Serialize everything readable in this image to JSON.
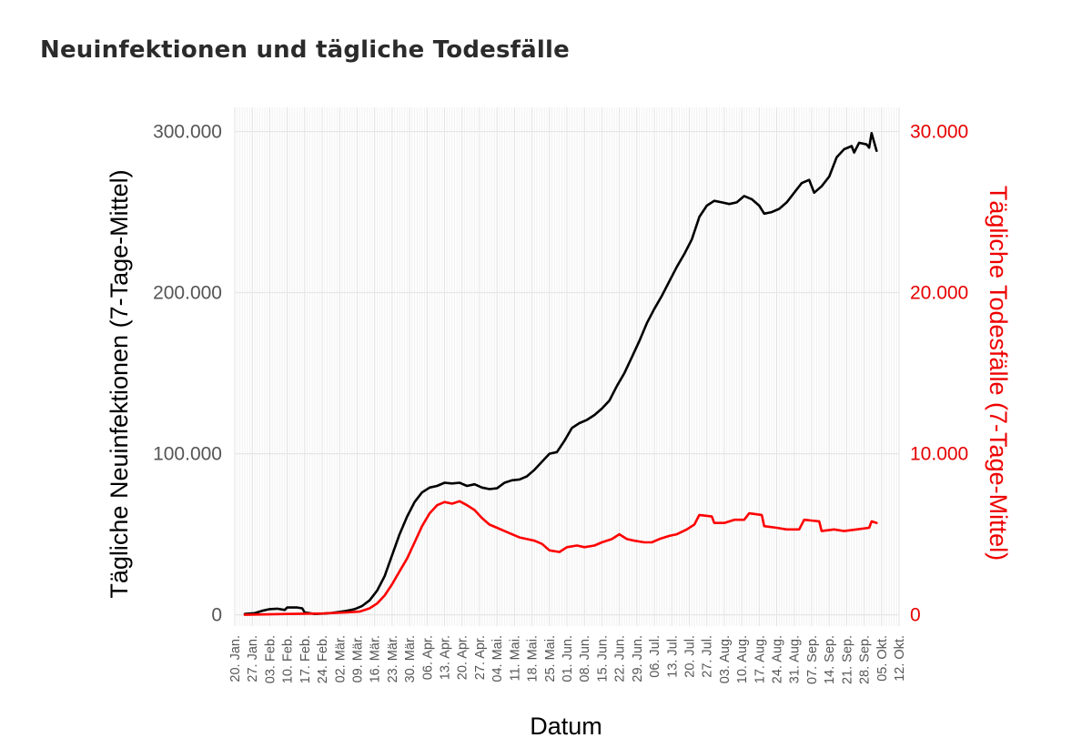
{
  "page_title": "Neuinfektionen und tägliche Todesfälle",
  "chart_data": {
    "type": "line",
    "xlabel": "Datum",
    "ylabel_left": "Tägliche Neuinfektionen (7-Tage-Mittel)",
    "ylabel_right": "Tägliche Todesfälle (7-Tage-Mittel)",
    "x_start": "2020-01-20",
    "x_end": "2020-10-12",
    "y_left_lim": [
      -7000,
      315000
    ],
    "y_right_lim": [
      -700,
      31500
    ],
    "left_ticks": [
      {
        "value": 0,
        "label": "0"
      },
      {
        "value": 100000,
        "label": "100.000"
      },
      {
        "value": 200000,
        "label": "200.000"
      },
      {
        "value": 300000,
        "label": "300.000"
      }
    ],
    "right_ticks": [
      {
        "value": 0,
        "label": "0"
      },
      {
        "value": 10000,
        "label": "10.000"
      },
      {
        "value": 20000,
        "label": "20.000"
      },
      {
        "value": 30000,
        "label": "30.000"
      }
    ],
    "x_ticks": [
      {
        "date": "2020-01-20",
        "label": "20. Jan."
      },
      {
        "date": "2020-01-27",
        "label": "27. Jan."
      },
      {
        "date": "2020-02-03",
        "label": "03. Feb."
      },
      {
        "date": "2020-02-10",
        "label": "10. Feb."
      },
      {
        "date": "2020-02-17",
        "label": "17. Feb."
      },
      {
        "date": "2020-02-24",
        "label": "24. Feb."
      },
      {
        "date": "2020-03-02",
        "label": "02. Mär."
      },
      {
        "date": "2020-03-09",
        "label": "09. Mär."
      },
      {
        "date": "2020-03-16",
        "label": "16. Mär."
      },
      {
        "date": "2020-03-23",
        "label": "23. Mär."
      },
      {
        "date": "2020-03-30",
        "label": "30. Mär."
      },
      {
        "date": "2020-04-06",
        "label": "06. Apr."
      },
      {
        "date": "2020-04-13",
        "label": "13. Apr."
      },
      {
        "date": "2020-04-20",
        "label": "20. Apr."
      },
      {
        "date": "2020-04-27",
        "label": "27. Apr."
      },
      {
        "date": "2020-05-04",
        "label": "04. Mai."
      },
      {
        "date": "2020-05-11",
        "label": "11. Mai."
      },
      {
        "date": "2020-05-18",
        "label": "18. Mai."
      },
      {
        "date": "2020-05-25",
        "label": "25. Mai."
      },
      {
        "date": "2020-06-01",
        "label": "01. Jun."
      },
      {
        "date": "2020-06-08",
        "label": "08. Jun."
      },
      {
        "date": "2020-06-15",
        "label": "15. Jun."
      },
      {
        "date": "2020-06-22",
        "label": "22. Jun."
      },
      {
        "date": "2020-06-29",
        "label": "29. Jun."
      },
      {
        "date": "2020-07-06",
        "label": "06. Jul."
      },
      {
        "date": "2020-07-13",
        "label": "13. Jul."
      },
      {
        "date": "2020-07-20",
        "label": "20. Jul."
      },
      {
        "date": "2020-07-27",
        "label": "27. Jul."
      },
      {
        "date": "2020-08-03",
        "label": "03. Aug."
      },
      {
        "date": "2020-08-10",
        "label": "10. Aug."
      },
      {
        "date": "2020-08-17",
        "label": "17. Aug."
      },
      {
        "date": "2020-08-24",
        "label": "24. Aug."
      },
      {
        "date": "2020-08-31",
        "label": "31. Aug."
      },
      {
        "date": "2020-09-07",
        "label": "07. Sep."
      },
      {
        "date": "2020-09-14",
        "label": "14. Sep."
      },
      {
        "date": "2020-09-21",
        "label": "21. Sep."
      },
      {
        "date": "2020-09-28",
        "label": "28. Sep."
      },
      {
        "date": "2020-10-05",
        "label": "05. Okt."
      },
      {
        "date": "2020-10-12",
        "label": "12. Okt."
      }
    ],
    "series": [
      {
        "name": "Tägliche Neuinfektionen (7-Tage-Mittel)",
        "axis": "left",
        "color": "#000000",
        "points": [
          [
            "2020-01-24",
            500
          ],
          [
            "2020-01-28",
            1000
          ],
          [
            "2020-01-31",
            2500
          ],
          [
            "2020-02-03",
            3500
          ],
          [
            "2020-02-06",
            3800
          ],
          [
            "2020-02-09",
            3000
          ],
          [
            "2020-02-10",
            4500
          ],
          [
            "2020-02-14",
            4500
          ],
          [
            "2020-02-16",
            4000
          ],
          [
            "2020-02-17",
            1500
          ],
          [
            "2020-02-21",
            500
          ],
          [
            "2020-02-25",
            800
          ],
          [
            "2020-02-28",
            1200
          ],
          [
            "2020-03-02",
            1800
          ],
          [
            "2020-03-05",
            2500
          ],
          [
            "2020-03-08",
            3500
          ],
          [
            "2020-03-11",
            5500
          ],
          [
            "2020-03-14",
            9000
          ],
          [
            "2020-03-17",
            15000
          ],
          [
            "2020-03-20",
            24000
          ],
          [
            "2020-03-23",
            37000
          ],
          [
            "2020-03-26",
            50000
          ],
          [
            "2020-03-29",
            61000
          ],
          [
            "2020-04-01",
            70000
          ],
          [
            "2020-04-04",
            76000
          ],
          [
            "2020-04-07",
            79000
          ],
          [
            "2020-04-10",
            80000
          ],
          [
            "2020-04-13",
            82000
          ],
          [
            "2020-04-16",
            81500
          ],
          [
            "2020-04-19",
            82000
          ],
          [
            "2020-04-22",
            80000
          ],
          [
            "2020-04-25",
            81000
          ],
          [
            "2020-04-28",
            79000
          ],
          [
            "2020-05-01",
            78000
          ],
          [
            "2020-05-04",
            78500
          ],
          [
            "2020-05-07",
            82000
          ],
          [
            "2020-05-10",
            83500
          ],
          [
            "2020-05-13",
            84000
          ],
          [
            "2020-05-16",
            86000
          ],
          [
            "2020-05-19",
            90000
          ],
          [
            "2020-05-22",
            95000
          ],
          [
            "2020-05-25",
            100000
          ],
          [
            "2020-05-28",
            101000
          ],
          [
            "2020-05-31",
            108000
          ],
          [
            "2020-06-03",
            116000
          ],
          [
            "2020-06-06",
            119000
          ],
          [
            "2020-06-09",
            121000
          ],
          [
            "2020-06-12",
            124000
          ],
          [
            "2020-06-15",
            128000
          ],
          [
            "2020-06-18",
            133000
          ],
          [
            "2020-06-21",
            142000
          ],
          [
            "2020-06-24",
            150000
          ],
          [
            "2020-06-27",
            160000
          ],
          [
            "2020-06-30",
            170000
          ],
          [
            "2020-07-03",
            181000
          ],
          [
            "2020-07-06",
            190000
          ],
          [
            "2020-07-09",
            198000
          ],
          [
            "2020-07-12",
            207000
          ],
          [
            "2020-07-15",
            216000
          ],
          [
            "2020-07-18",
            224000
          ],
          [
            "2020-07-21",
            233000
          ],
          [
            "2020-07-24",
            247000
          ],
          [
            "2020-07-27",
            254000
          ],
          [
            "2020-07-30",
            257000
          ],
          [
            "2020-08-02",
            256000
          ],
          [
            "2020-08-05",
            255000
          ],
          [
            "2020-08-08",
            256000
          ],
          [
            "2020-08-11",
            260000
          ],
          [
            "2020-08-14",
            258000
          ],
          [
            "2020-08-17",
            254000
          ],
          [
            "2020-08-19",
            249000
          ],
          [
            "2020-08-22",
            250000
          ],
          [
            "2020-08-25",
            252000
          ],
          [
            "2020-08-28",
            256000
          ],
          [
            "2020-08-31",
            262000
          ],
          [
            "2020-09-03",
            268000
          ],
          [
            "2020-09-06",
            270000
          ],
          [
            "2020-09-08",
            262000
          ],
          [
            "2020-09-11",
            266000
          ],
          [
            "2020-09-14",
            272000
          ],
          [
            "2020-09-17",
            284000
          ],
          [
            "2020-09-20",
            289000
          ],
          [
            "2020-09-23",
            291000
          ],
          [
            "2020-09-24",
            287000
          ],
          [
            "2020-09-26",
            293000
          ],
          [
            "2020-09-29",
            292000
          ],
          [
            "2020-09-30",
            290000
          ],
          [
            "2020-10-01",
            299000
          ],
          [
            "2020-10-03",
            288000
          ]
        ]
      },
      {
        "name": "Tägliche Todesfälle (7-Tage-Mittel)",
        "axis": "right",
        "color": "#ff0000",
        "points": [
          [
            "2020-01-24",
            0
          ],
          [
            "2020-02-10",
            50
          ],
          [
            "2020-02-24",
            80
          ],
          [
            "2020-03-05",
            150
          ],
          [
            "2020-03-10",
            200
          ],
          [
            "2020-03-14",
            400
          ],
          [
            "2020-03-17",
            700
          ],
          [
            "2020-03-20",
            1200
          ],
          [
            "2020-03-23",
            1900
          ],
          [
            "2020-03-26",
            2700
          ],
          [
            "2020-03-29",
            3500
          ],
          [
            "2020-04-01",
            4500
          ],
          [
            "2020-04-04",
            5500
          ],
          [
            "2020-04-07",
            6300
          ],
          [
            "2020-04-10",
            6800
          ],
          [
            "2020-04-13",
            7000
          ],
          [
            "2020-04-16",
            6900
          ],
          [
            "2020-04-19",
            7050
          ],
          [
            "2020-04-22",
            6800
          ],
          [
            "2020-04-25",
            6500
          ],
          [
            "2020-04-28",
            6000
          ],
          [
            "2020-05-01",
            5600
          ],
          [
            "2020-05-04",
            5400
          ],
          [
            "2020-05-07",
            5200
          ],
          [
            "2020-05-10",
            5000
          ],
          [
            "2020-05-13",
            4800
          ],
          [
            "2020-05-16",
            4700
          ],
          [
            "2020-05-19",
            4600
          ],
          [
            "2020-05-22",
            4400
          ],
          [
            "2020-05-25",
            4000
          ],
          [
            "2020-05-29",
            3900
          ],
          [
            "2020-06-01",
            4200
          ],
          [
            "2020-06-05",
            4300
          ],
          [
            "2020-06-08",
            4200
          ],
          [
            "2020-06-12",
            4300
          ],
          [
            "2020-06-15",
            4500
          ],
          [
            "2020-06-19",
            4700
          ],
          [
            "2020-06-22",
            5000
          ],
          [
            "2020-06-25",
            4700
          ],
          [
            "2020-06-28",
            4600
          ],
          [
            "2020-07-02",
            4500
          ],
          [
            "2020-07-05",
            4500
          ],
          [
            "2020-07-08",
            4700
          ],
          [
            "2020-07-12",
            4900
          ],
          [
            "2020-07-15",
            5000
          ],
          [
            "2020-07-19",
            5300
          ],
          [
            "2020-07-22",
            5600
          ],
          [
            "2020-07-24",
            6200
          ],
          [
            "2020-07-29",
            6100
          ],
          [
            "2020-07-30",
            5700
          ],
          [
            "2020-08-03",
            5700
          ],
          [
            "2020-08-07",
            5900
          ],
          [
            "2020-08-11",
            5900
          ],
          [
            "2020-08-13",
            6300
          ],
          [
            "2020-08-18",
            6200
          ],
          [
            "2020-08-19",
            5500
          ],
          [
            "2020-08-24",
            5400
          ],
          [
            "2020-08-28",
            5300
          ],
          [
            "2020-09-02",
            5300
          ],
          [
            "2020-09-04",
            5900
          ],
          [
            "2020-09-10",
            5800
          ],
          [
            "2020-09-11",
            5200
          ],
          [
            "2020-09-16",
            5300
          ],
          [
            "2020-09-20",
            5200
          ],
          [
            "2020-09-25",
            5300
          ],
          [
            "2020-09-30",
            5400
          ],
          [
            "2020-10-01",
            5800
          ],
          [
            "2020-10-03",
            5700
          ]
        ]
      }
    ]
  }
}
